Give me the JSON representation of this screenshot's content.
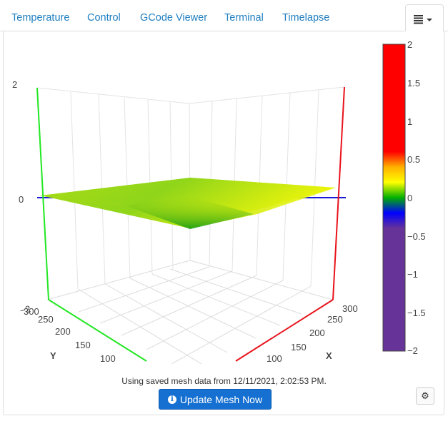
{
  "tabs": [
    {
      "label": "Temperature"
    },
    {
      "label": "Control"
    },
    {
      "label": "GCode Viewer"
    },
    {
      "label": "Terminal"
    },
    {
      "label": "Timelapse"
    }
  ],
  "menu": {
    "icon": "list-icon",
    "caret": "caret-down-icon"
  },
  "plot": {
    "z_ticks": [
      "2",
      "0"
    ],
    "y_axis": {
      "label": "Y",
      "ticks": [
        "300",
        "250",
        "200",
        "150",
        "100"
      ],
      "top_partial": "−2"
    },
    "x_axis": {
      "label": "X",
      "ticks": [
        "300",
        "250",
        "200",
        "150",
        "100"
      ]
    },
    "colors": {
      "x_axis": "#e8131b",
      "y_axis": "#22e722",
      "zero_line": "#1a1ad8"
    },
    "colorbar": {
      "ticks": [
        "2",
        "1.5",
        "1",
        "0.5",
        "0",
        "−0.5",
        "−1",
        "−1.5",
        "−2"
      ],
      "range": [
        -2,
        2
      ],
      "stops": [
        {
          "value": 2,
          "color": "#ff0000"
        },
        {
          "value": 0.6,
          "color": "#ff0000"
        },
        {
          "value": 0.4,
          "color": "#ffb000"
        },
        {
          "value": 0.2,
          "color": "#ffff00"
        },
        {
          "value": 0.0,
          "color": "#00b000"
        },
        {
          "value": -0.2,
          "color": "#0000ff"
        },
        {
          "value": -0.4,
          "color": "#663399"
        },
        {
          "value": -2,
          "color": "#663399"
        }
      ]
    }
  },
  "status_text": "Using saved mesh data from 12/11/2021, 2:02:53 PM.",
  "update_button": {
    "label": "Update Mesh Now",
    "icon": "info-icon"
  },
  "settings_button": {
    "icon": "gear-icon"
  }
}
